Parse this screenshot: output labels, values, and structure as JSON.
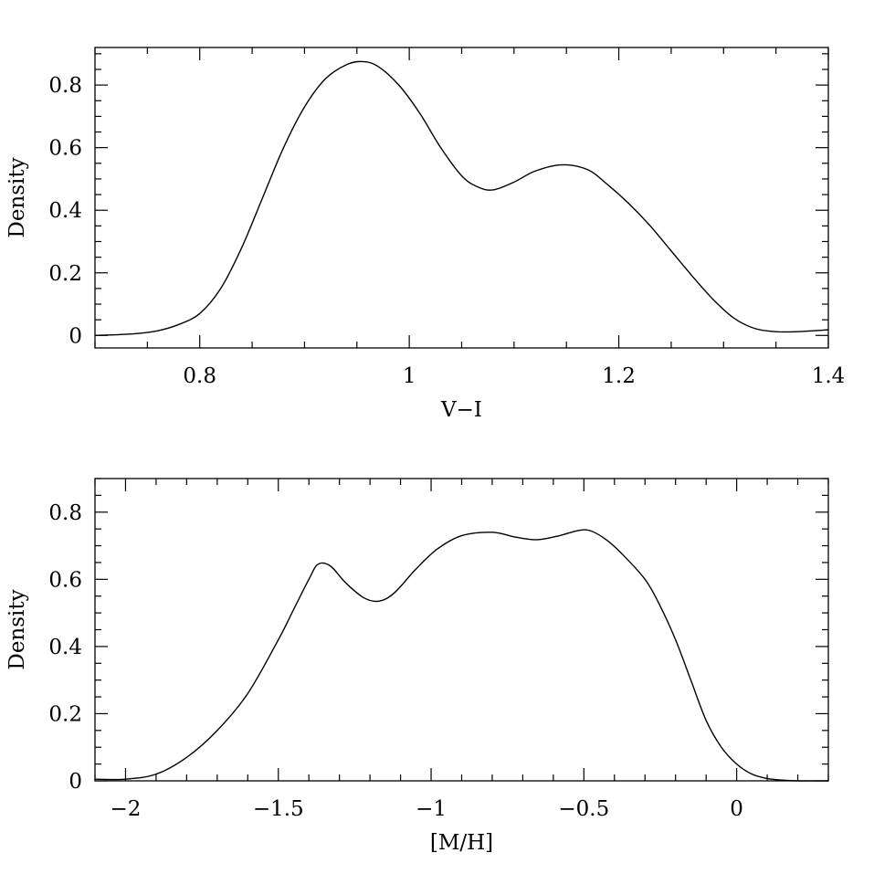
{
  "chart_data": [
    {
      "type": "line",
      "title": "",
      "xlabel": "V−I",
      "ylabel": "Density",
      "xlim": [
        0.7,
        1.4
      ],
      "ylim": [
        -0.04,
        0.92
      ],
      "x_ticks": [
        0.8,
        1.0,
        1.2,
        1.4
      ],
      "x_tick_labels": [
        "0.8",
        "1",
        "1.2",
        "1.4"
      ],
      "x_minor_step": 0.05,
      "y_ticks": [
        0,
        0.2,
        0.4,
        0.6,
        0.8
      ],
      "y_tick_labels": [
        "0",
        "0.2",
        "0.4",
        "0.6",
        "0.8"
      ],
      "y_minor_step": 0.05,
      "grid": false,
      "series": [
        {
          "x": [
            0.7,
            0.72,
            0.74,
            0.76,
            0.78,
            0.8,
            0.82,
            0.84,
            0.86,
            0.88,
            0.9,
            0.92,
            0.94,
            0.955,
            0.97,
            0.99,
            1.01,
            1.03,
            1.05,
            1.065,
            1.08,
            1.1,
            1.12,
            1.145,
            1.17,
            1.19,
            1.21,
            1.23,
            1.25,
            1.27,
            1.29,
            1.31,
            1.33,
            1.35,
            1.37,
            1.4
          ],
          "y": [
            0.0,
            0.002,
            0.006,
            0.015,
            0.035,
            0.07,
            0.15,
            0.28,
            0.44,
            0.6,
            0.73,
            0.82,
            0.865,
            0.875,
            0.86,
            0.8,
            0.71,
            0.6,
            0.51,
            0.475,
            0.465,
            0.49,
            0.525,
            0.545,
            0.53,
            0.48,
            0.42,
            0.35,
            0.27,
            0.19,
            0.115,
            0.055,
            0.022,
            0.012,
            0.012,
            0.018
          ]
        }
      ]
    },
    {
      "type": "line",
      "title": "",
      "xlabel": "[M/H]",
      "ylabel": "Density",
      "xlim": [
        -2.1,
        0.3
      ],
      "ylim": [
        0,
        0.9
      ],
      "x_ticks": [
        -2,
        -1.5,
        -1,
        -0.5,
        0
      ],
      "x_tick_labels": [
        "−2",
        "−1.5",
        "−1",
        "−0.5",
        "0"
      ],
      "x_minor_step": 0.1,
      "y_ticks": [
        0,
        0.2,
        0.4,
        0.6,
        0.8
      ],
      "y_tick_labels": [
        "0",
        "0.2",
        "0.4",
        "0.6",
        "0.8"
      ],
      "y_minor_step": 0.05,
      "grid": false,
      "series": [
        {
          "x": [
            -2.1,
            -2.0,
            -1.9,
            -1.8,
            -1.7,
            -1.6,
            -1.5,
            -1.45,
            -1.4,
            -1.37,
            -1.33,
            -1.28,
            -1.22,
            -1.17,
            -1.12,
            -1.05,
            -0.98,
            -0.9,
            -0.8,
            -0.72,
            -0.65,
            -0.58,
            -0.52,
            -0.48,
            -0.43,
            -0.38,
            -0.3,
            -0.25,
            -0.2,
            -0.15,
            -0.1,
            -0.05,
            0.0,
            0.05,
            0.1,
            0.15,
            0.2,
            0.3
          ],
          "y": [
            0.005,
            0.005,
            0.02,
            0.07,
            0.15,
            0.26,
            0.42,
            0.51,
            0.6,
            0.645,
            0.64,
            0.59,
            0.545,
            0.535,
            0.56,
            0.63,
            0.69,
            0.73,
            0.74,
            0.725,
            0.718,
            0.73,
            0.745,
            0.745,
            0.72,
            0.68,
            0.6,
            0.52,
            0.42,
            0.3,
            0.18,
            0.1,
            0.05,
            0.02,
            0.007,
            0.002,
            0.0,
            0.0
          ]
        }
      ]
    }
  ]
}
